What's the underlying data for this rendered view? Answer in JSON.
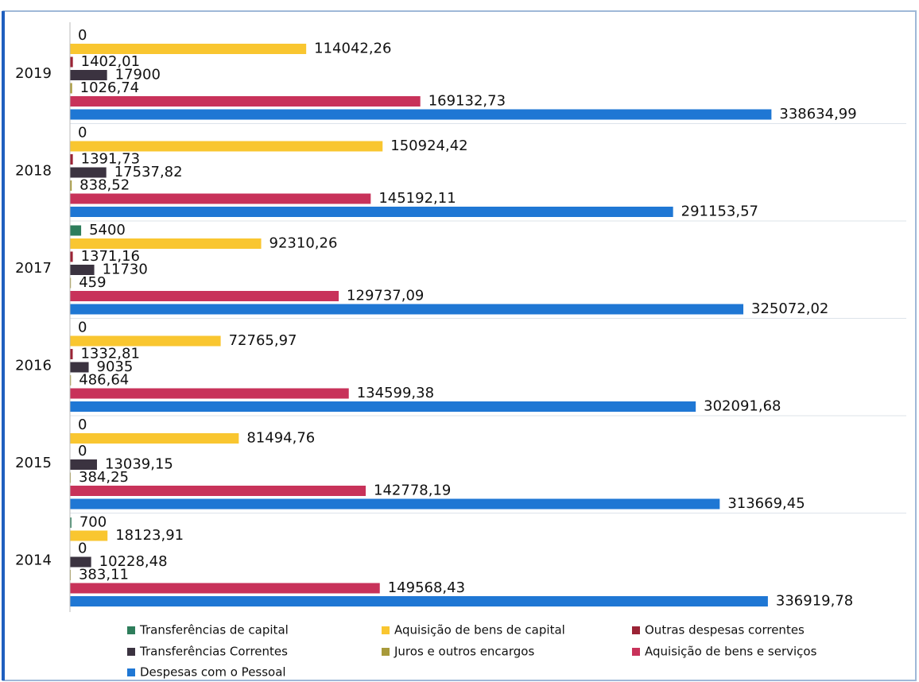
{
  "chart_data": {
    "type": "bar",
    "orientation": "horizontal",
    "categories": [
      "2019",
      "2018",
      "2017",
      "2016",
      "2015",
      "2014"
    ],
    "xlim": [
      0,
      350000
    ],
    "series": [
      {
        "name": "Transferências de capital",
        "color": "#2e7d5b",
        "values": [
          0,
          0,
          5400,
          0,
          0,
          700
        ],
        "value_labels": [
          "0",
          "0",
          "5400",
          "0",
          "0",
          "700"
        ]
      },
      {
        "name": "Aquisição de bens de capital",
        "color": "#f9c630",
        "values": [
          114042.26,
          150924.42,
          92310.26,
          72765.97,
          81494.76,
          18123.91
        ],
        "value_labels": [
          "114042,26",
          "150924,42",
          "92310,26",
          "72765,97",
          "81494,76",
          "18123,91"
        ]
      },
      {
        "name": "Outras despesas correntes",
        "color": "#9b2335",
        "values": [
          1402.01,
          1391.73,
          1371.16,
          1332.81,
          0,
          0
        ],
        "value_labels": [
          "1402,01",
          "1391,73",
          "1371,16",
          "1332,81",
          "0",
          "0"
        ]
      },
      {
        "name": "Transferências Correntes",
        "color": "#3b3340",
        "values": [
          17900,
          17537.82,
          11730,
          9035,
          13039.15,
          10228.48
        ],
        "value_labels": [
          "17900",
          "17537,82",
          "11730",
          "9035",
          "13039,15",
          "10228,48"
        ]
      },
      {
        "name": "Juros e outros encargos",
        "color": "#a89a3a",
        "values": [
          1026.74,
          838.52,
          459,
          486.64,
          384.25,
          383.11
        ],
        "value_labels": [
          "1026,74",
          "838,52",
          "459",
          "486,64",
          "384,25",
          "383,11"
        ]
      },
      {
        "name": "Aquisição de bens e serviços",
        "color": "#c8325a",
        "values": [
          169132.73,
          145192.11,
          129737.09,
          134599.38,
          142778.19,
          149568.43
        ],
        "value_labels": [
          "169132,73",
          "145192,11",
          "129737,09",
          "134599,38",
          "142778,19",
          "149568,43"
        ]
      },
      {
        "name": "Despesas com o Pessoal",
        "color": "#1f77d4",
        "values": [
          338634.99,
          291153.57,
          325072.02,
          302091.68,
          313669.45,
          336919.78
        ],
        "value_labels": [
          "338634,99",
          "291153,57",
          "325072,02",
          "302091,68",
          "313669,45",
          "336919,78"
        ]
      }
    ]
  }
}
